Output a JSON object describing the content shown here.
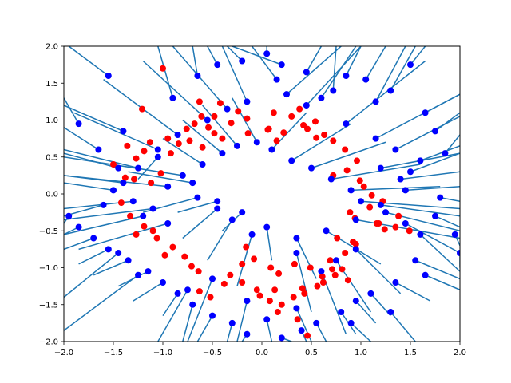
{
  "chart_data": {
    "type": "scatter",
    "title": "",
    "xlabel": "",
    "ylabel": "",
    "xlim": [
      -2.0,
      2.0
    ],
    "ylim": [
      -2.0,
      2.0
    ],
    "xticks": [
      "−2.0",
      "−1.5",
      "−1.0",
      "−0.5",
      "0.0",
      "0.5",
      "1.0",
      "1.5",
      "2.0"
    ],
    "yticks": [
      "−2.0",
      "−1.5",
      "−1.0",
      "−0.5",
      "0.0",
      "0.5",
      "1.0",
      "1.5",
      "2.0"
    ],
    "xtick_values": [
      -2.0,
      -1.5,
      -1.0,
      -0.5,
      0.0,
      0.5,
      1.0,
      1.5,
      2.0
    ],
    "ytick_values": [
      -2.0,
      -1.5,
      -1.0,
      -0.5,
      0.0,
      0.5,
      1.0,
      1.5,
      2.0
    ],
    "grid": false,
    "legend": "none",
    "colors": {
      "red_points": "#ff0000",
      "blue_points": "#0000ff",
      "lines": "#1f77b4"
    },
    "series": [
      {
        "marker": "red-dot",
        "x": [
          -1.0,
          -1.21,
          -0.63,
          -0.42,
          -0.48,
          -0.24,
          -0.31,
          -0.15,
          0.12,
          0.06,
          0.42,
          0.54,
          0.63,
          0.72,
          0.84,
          0.96,
          0.86,
          0.72,
          0.99,
          1.03,
          1.11,
          1.22,
          1.09,
          0.89,
          0.94,
          1.18,
          1.38,
          1.35,
          1.49,
          0.76,
          0.95,
          0.84,
          0.69,
          0.71,
          0.74,
          0.87,
          0.62,
          0.56,
          0.43,
          0.32,
          0.13,
          0.08,
          0.2,
          0.16,
          -0.05,
          -0.02,
          -0.2,
          -0.32,
          -0.38,
          -0.52,
          -0.63,
          -0.64,
          -0.71,
          -0.78,
          -0.9,
          -0.98,
          -1.06,
          -1.1,
          -1.19,
          -1.27,
          -1.33,
          -1.42,
          -1.5,
          -1.12,
          -1.02,
          -0.92,
          -0.84,
          -0.95,
          -1.13,
          -1.19,
          -1.27,
          -1.29,
          -1.38,
          -1.36,
          -0.76,
          -0.68,
          -0.61,
          -0.54,
          -0.73,
          -0.6,
          -0.48,
          -0.4,
          -0.14,
          0.07,
          0.15,
          0.22,
          0.3,
          0.38,
          0.46,
          0.55,
          -0.08,
          -0.2,
          -0.16,
          0.09,
          0.17,
          0.33,
          0.49,
          0.61,
          0.81,
          1.16,
          1.24,
          0.92,
          0.46,
          0.41,
          0.36
        ],
        "y": [
          1.7,
          1.15,
          1.25,
          1.23,
          1.05,
          1.12,
          0.96,
          1.02,
          1.1,
          0.87,
          0.93,
          0.98,
          0.8,
          0.72,
          0.6,
          0.45,
          0.32,
          0.25,
          0.18,
          0.1,
          -0.02,
          -0.1,
          -0.18,
          -0.25,
          -0.33,
          -0.4,
          -0.3,
          -0.45,
          -0.5,
          -0.6,
          -0.68,
          -0.8,
          -0.9,
          -1.02,
          -1.1,
          -1.17,
          -1.2,
          -1.25,
          -1.35,
          -1.4,
          -1.3,
          -1.45,
          -1.5,
          -1.6,
          -1.3,
          -1.38,
          -1.2,
          -1.1,
          -1.22,
          -1.4,
          -1.32,
          -1.05,
          -0.98,
          -0.85,
          -0.72,
          -0.83,
          -0.6,
          -0.5,
          -0.44,
          -0.55,
          -0.3,
          -0.12,
          0.4,
          0.15,
          0.28,
          0.55,
          0.68,
          0.75,
          0.7,
          0.58,
          0.48,
          0.2,
          0.22,
          0.65,
          0.88,
          0.95,
          1.05,
          0.9,
          0.72,
          0.63,
          0.82,
          0.75,
          0.82,
          0.88,
          0.72,
          0.83,
          1.05,
          1.15,
          0.88,
          0.76,
          -0.88,
          -0.95,
          -0.72,
          -1.0,
          -1.08,
          -0.95,
          -1.0,
          -1.12,
          -1.02,
          -0.4,
          -0.48,
          -0.65,
          -1.92,
          -1.28,
          -1.7
        ]
      },
      {
        "marker": "blue-dot-with-line",
        "x": [
          -1.55,
          -1.85,
          -1.65,
          -1.4,
          -1.45,
          -1.05,
          -0.9,
          -0.65,
          -0.45,
          -0.2,
          0.05,
          0.15,
          0.2,
          0.45,
          0.6,
          0.72,
          0.85,
          1.05,
          1.15,
          1.3,
          1.5,
          1.65,
          1.75,
          1.85,
          1.6,
          1.2,
          1.4,
          1.45,
          1.8,
          1.75,
          1.95,
          2.0,
          1.55,
          1.65,
          1.35,
          1.1,
          0.95,
          0.8,
          0.55,
          0.4,
          0.2,
          0.05,
          -0.15,
          -0.3,
          -0.5,
          -0.7,
          -0.85,
          -1.0,
          -1.15,
          -1.35,
          -1.55,
          -1.7,
          -1.85,
          -1.95,
          -1.5,
          -1.3,
          -1.1,
          -0.95,
          -0.8,
          -0.6,
          -0.4,
          -0.25,
          -0.05,
          0.1,
          0.3,
          0.5,
          0.7,
          0.9,
          1.0,
          1.25,
          1.45,
          1.6,
          0.95,
          0.75,
          0.6,
          0.35,
          -0.1,
          -0.3,
          -0.45,
          -0.65,
          -1.25,
          -1.05,
          -0.85,
          -0.55,
          -0.35,
          -0.15,
          0.25,
          0.45,
          0.85,
          1.15,
          1.35,
          1.5,
          1.2,
          0.95,
          0.65,
          0.35,
          0.05,
          -0.2,
          -0.45,
          -0.7,
          -0.95,
          -1.2,
          -1.4,
          -1.6,
          -1.45,
          -1.25,
          -0.75,
          -0.5,
          -0.15,
          0.35,
          0.9,
          1.3
        ],
        "y": [
          1.6,
          0.95,
          0.6,
          0.85,
          0.35,
          0.5,
          1.3,
          1.6,
          1.75,
          1.8,
          1.9,
          1.55,
          1.75,
          1.65,
          1.3,
          1.4,
          1.6,
          1.55,
          1.25,
          1.4,
          1.75,
          1.1,
          0.85,
          0.55,
          0.45,
          0.35,
          0.2,
          0.05,
          -0.05,
          -0.3,
          -0.55,
          -0.8,
          -0.9,
          -1.1,
          -1.2,
          -1.35,
          -1.45,
          -1.6,
          -1.75,
          -1.85,
          -1.95,
          -1.7,
          -1.9,
          -1.75,
          -1.65,
          -1.5,
          -1.35,
          -1.2,
          -1.05,
          -0.9,
          -0.75,
          -0.6,
          -0.45,
          -0.3,
          0.05,
          -0.1,
          -0.2,
          0.1,
          0.25,
          0.4,
          0.55,
          0.65,
          0.7,
          0.6,
          0.45,
          0.35,
          0.2,
          0.05,
          -0.1,
          -0.25,
          -0.4,
          -0.55,
          -0.75,
          -0.9,
          -1.05,
          -0.8,
          -0.55,
          -0.35,
          -0.2,
          -0.05,
          0.35,
          0.6,
          0.8,
          1.0,
          1.15,
          1.25,
          1.35,
          1.2,
          0.95,
          0.75,
          0.6,
          0.3,
          -0.15,
          -0.35,
          -0.5,
          -0.6,
          -0.45,
          -0.25,
          -0.1,
          0.15,
          -0.4,
          -0.3,
          0.15,
          -0.15,
          -0.8,
          -1.1,
          -1.3,
          -1.15,
          -1.45,
          -1.55,
          -1.75,
          -1.6
        ],
        "line_end_x": [
          -1.95,
          -2.0,
          -2.0,
          -2.0,
          -2.0,
          -1.25,
          -1.05,
          -0.7,
          -0.55,
          -0.35,
          0.05,
          -0.1,
          -0.3,
          0.6,
          0.95,
          0.75,
          1.0,
          1.25,
          1.45,
          1.55,
          1.65,
          2.0,
          2.0,
          2.0,
          2.0,
          2.0,
          2.0,
          2.0,
          2.0,
          2.0,
          2.0,
          2.0,
          2.0,
          2.0,
          1.7,
          1.3,
          1.15,
          0.95,
          0.65,
          0.45,
          0.3,
          0.1,
          -0.2,
          -0.35,
          -0.65,
          -0.8,
          -1.0,
          -1.3,
          -1.45,
          -1.7,
          -1.85,
          -2.0,
          -2.0,
          -2.0,
          -2.0,
          -2.0,
          -2.0,
          -2.0,
          -2.0,
          -1.0,
          -0.8,
          -0.6,
          -0.3,
          0.45,
          0.9,
          1.25,
          1.6,
          1.8,
          2.0,
          2.0,
          2.0,
          2.0,
          1.4,
          1.1,
          0.85,
          0.5,
          -0.25,
          -0.55,
          -0.8,
          -1.2,
          -2.0,
          -1.9,
          -1.6,
          -1.2,
          -0.9,
          -0.4,
          0.8,
          1.0,
          1.65,
          2.0,
          2.0,
          2.0,
          2.0,
          2.0,
          1.2,
          0.55,
          0.1,
          -0.4,
          -0.85,
          -1.35,
          -1.85,
          -2.0,
          -2.0,
          -2.0,
          -2.0,
          -2.0,
          -1.05,
          -0.75,
          -0.25,
          0.5,
          1.1,
          1.55
        ],
        "line_end_y": [
          2.0,
          1.3,
          0.9,
          1.2,
          0.55,
          0.2,
          2.0,
          2.0,
          2.0,
          2.0,
          2.0,
          2.0,
          2.0,
          2.0,
          2.0,
          2.0,
          2.0,
          2.0,
          2.0,
          2.0,
          2.0,
          1.35,
          1.1,
          0.8,
          0.65,
          0.55,
          0.3,
          0.1,
          -0.1,
          -0.45,
          -0.7,
          -1.0,
          -1.15,
          -1.3,
          -1.45,
          -1.65,
          -1.75,
          -1.9,
          -2.0,
          -2.0,
          -2.0,
          -2.0,
          -2.0,
          -2.0,
          -2.0,
          -2.0,
          -1.65,
          -1.45,
          -1.25,
          -1.1,
          -0.95,
          -0.75,
          -0.55,
          -0.4,
          0.15,
          -0.2,
          -0.35,
          0.25,
          0.5,
          0.75,
          1.0,
          1.2,
          1.3,
          1.1,
          0.95,
          0.7,
          0.4,
          0.1,
          -0.2,
          -0.5,
          -0.8,
          -1.05,
          -1.35,
          -1.6,
          -1.9,
          -1.6,
          -1.25,
          -0.9,
          -0.6,
          -0.25,
          0.6,
          1.1,
          1.55,
          1.8,
          2.0,
          2.0,
          2.0,
          2.0,
          1.8,
          1.35,
          1.05,
          0.55,
          -0.3,
          -0.6,
          -0.95,
          -1.15,
          -0.9,
          -0.5,
          -0.25,
          0.3,
          -0.75,
          -0.55,
          0.25,
          -0.3,
          -1.4,
          -1.85,
          -2.0,
          -2.0,
          -2.0,
          -2.0,
          -2.0,
          -2.0
        ]
      }
    ]
  }
}
